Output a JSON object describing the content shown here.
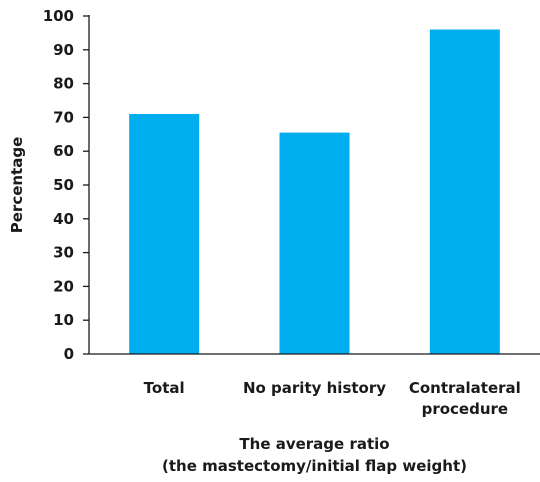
{
  "chart_data": {
    "type": "bar",
    "categories": [
      [
        "Total"
      ],
      [
        "No parity history"
      ],
      [
        "Contralateral",
        "procedure"
      ]
    ],
    "values": [
      71,
      65.5,
      96
    ],
    "bar_color": "#00aeef",
    "ylim": [
      0,
      100
    ],
    "yticks": [
      0,
      10,
      20,
      30,
      40,
      50,
      60,
      70,
      80,
      90,
      100
    ],
    "ylabel": "Percentage",
    "xlabel": [
      "The average ratio",
      "(the mastectomy/initial flap weight)"
    ],
    "grid": false,
    "legend": "none"
  }
}
